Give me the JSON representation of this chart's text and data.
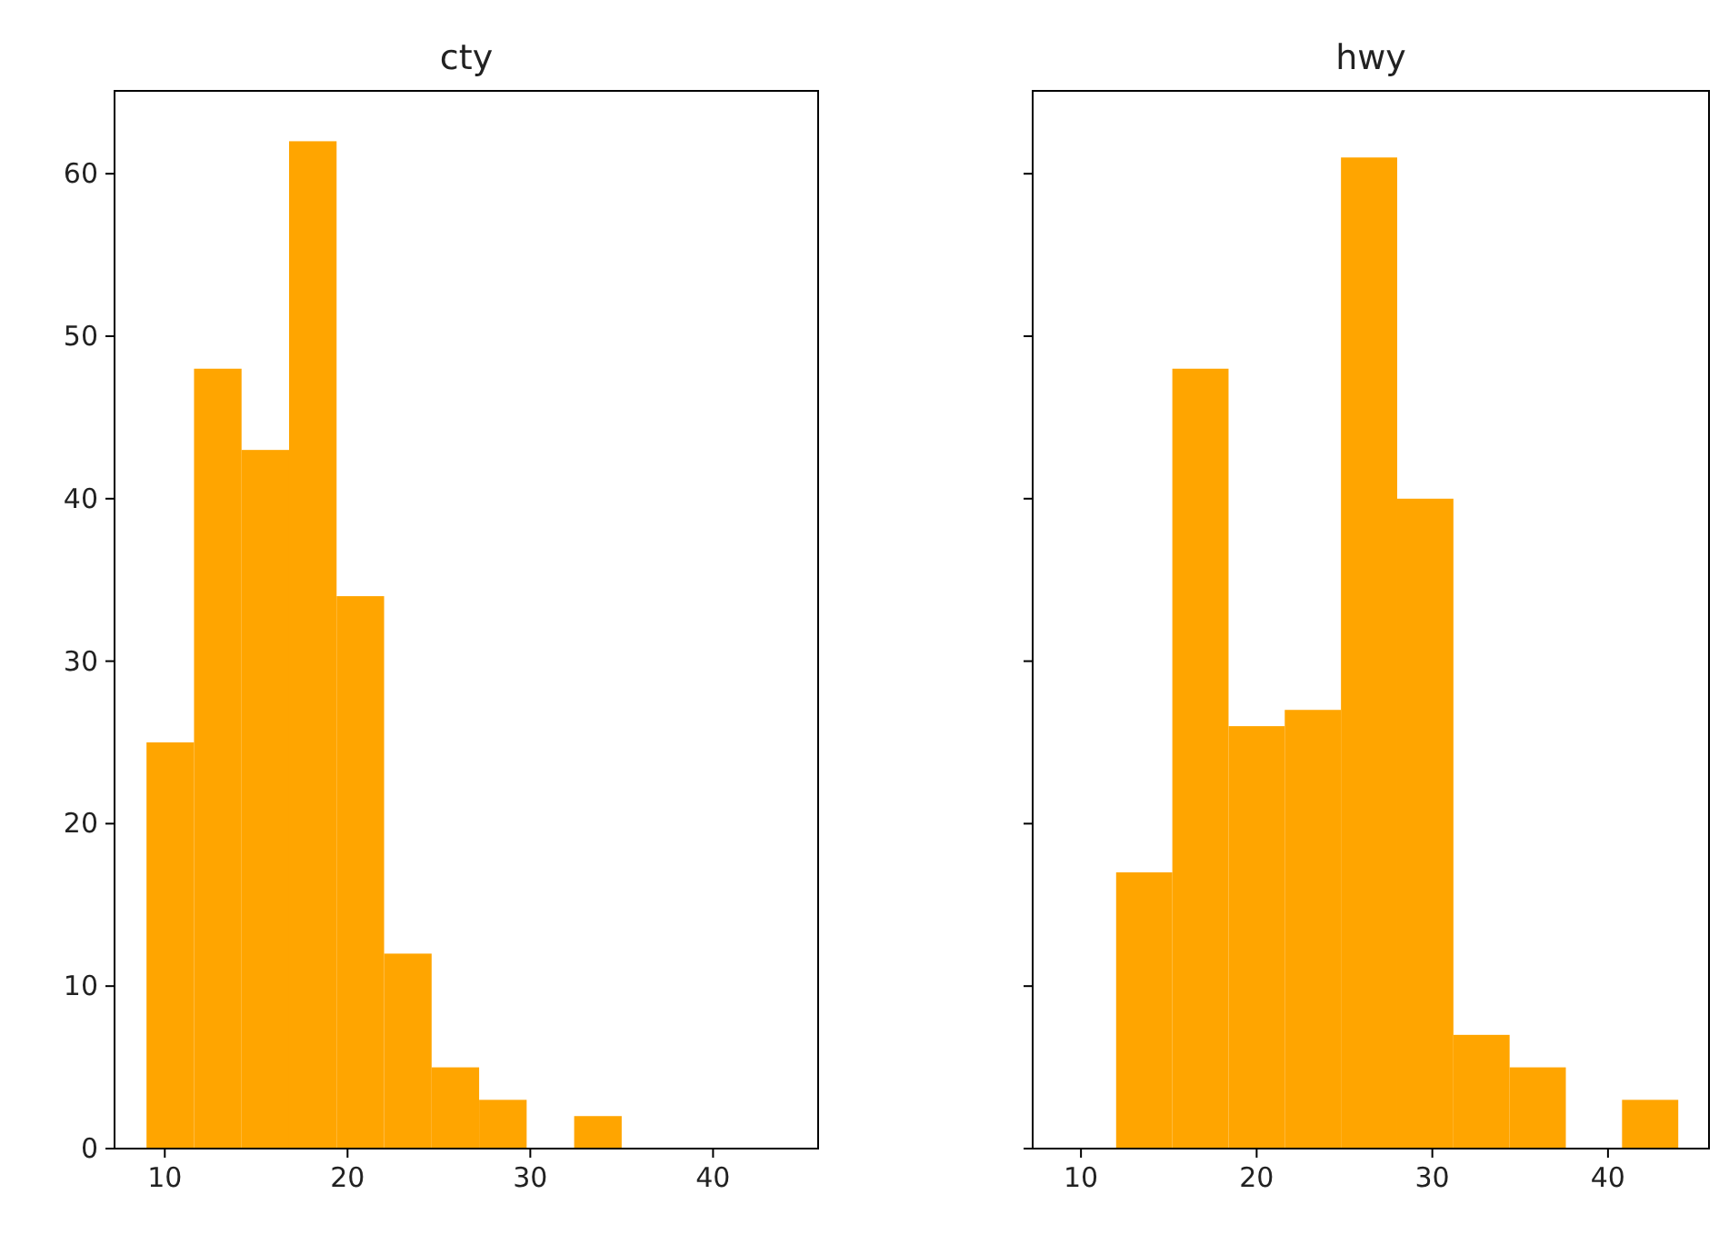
{
  "chart_data": [
    {
      "type": "histogram",
      "title": "cty",
      "color": "#ffa500",
      "bins": [
        9,
        11.6,
        14.2,
        16.8,
        19.4,
        22,
        24.6,
        27.2,
        29.8,
        32.4,
        35
      ],
      "values": [
        25,
        48,
        43,
        62,
        34,
        12,
        5,
        3,
        0,
        2
      ],
      "xlim": [
        7.25,
        45.75
      ],
      "xticks": [
        10,
        20,
        30,
        40
      ],
      "ylim": [
        0,
        65.1
      ],
      "yticks": [
        0,
        10,
        20,
        30,
        40,
        50,
        60
      ],
      "grid": false
    },
    {
      "type": "histogram",
      "title": "hwy",
      "color": "#ffa500",
      "bins": [
        12,
        15.2,
        18.4,
        21.6,
        24.8,
        28,
        31.2,
        34.4,
        37.6,
        40.8,
        44
      ],
      "values": [
        17,
        48,
        26,
        27,
        61,
        40,
        7,
        5,
        0,
        3
      ],
      "xlim": [
        7.25,
        45.75
      ],
      "xticks": [
        10,
        20,
        30,
        40
      ],
      "ylim": [
        0,
        65.1
      ],
      "yticks": [
        0,
        10,
        20,
        30,
        40,
        50,
        60
      ],
      "grid": false,
      "tick_labels": "x"
    }
  ]
}
